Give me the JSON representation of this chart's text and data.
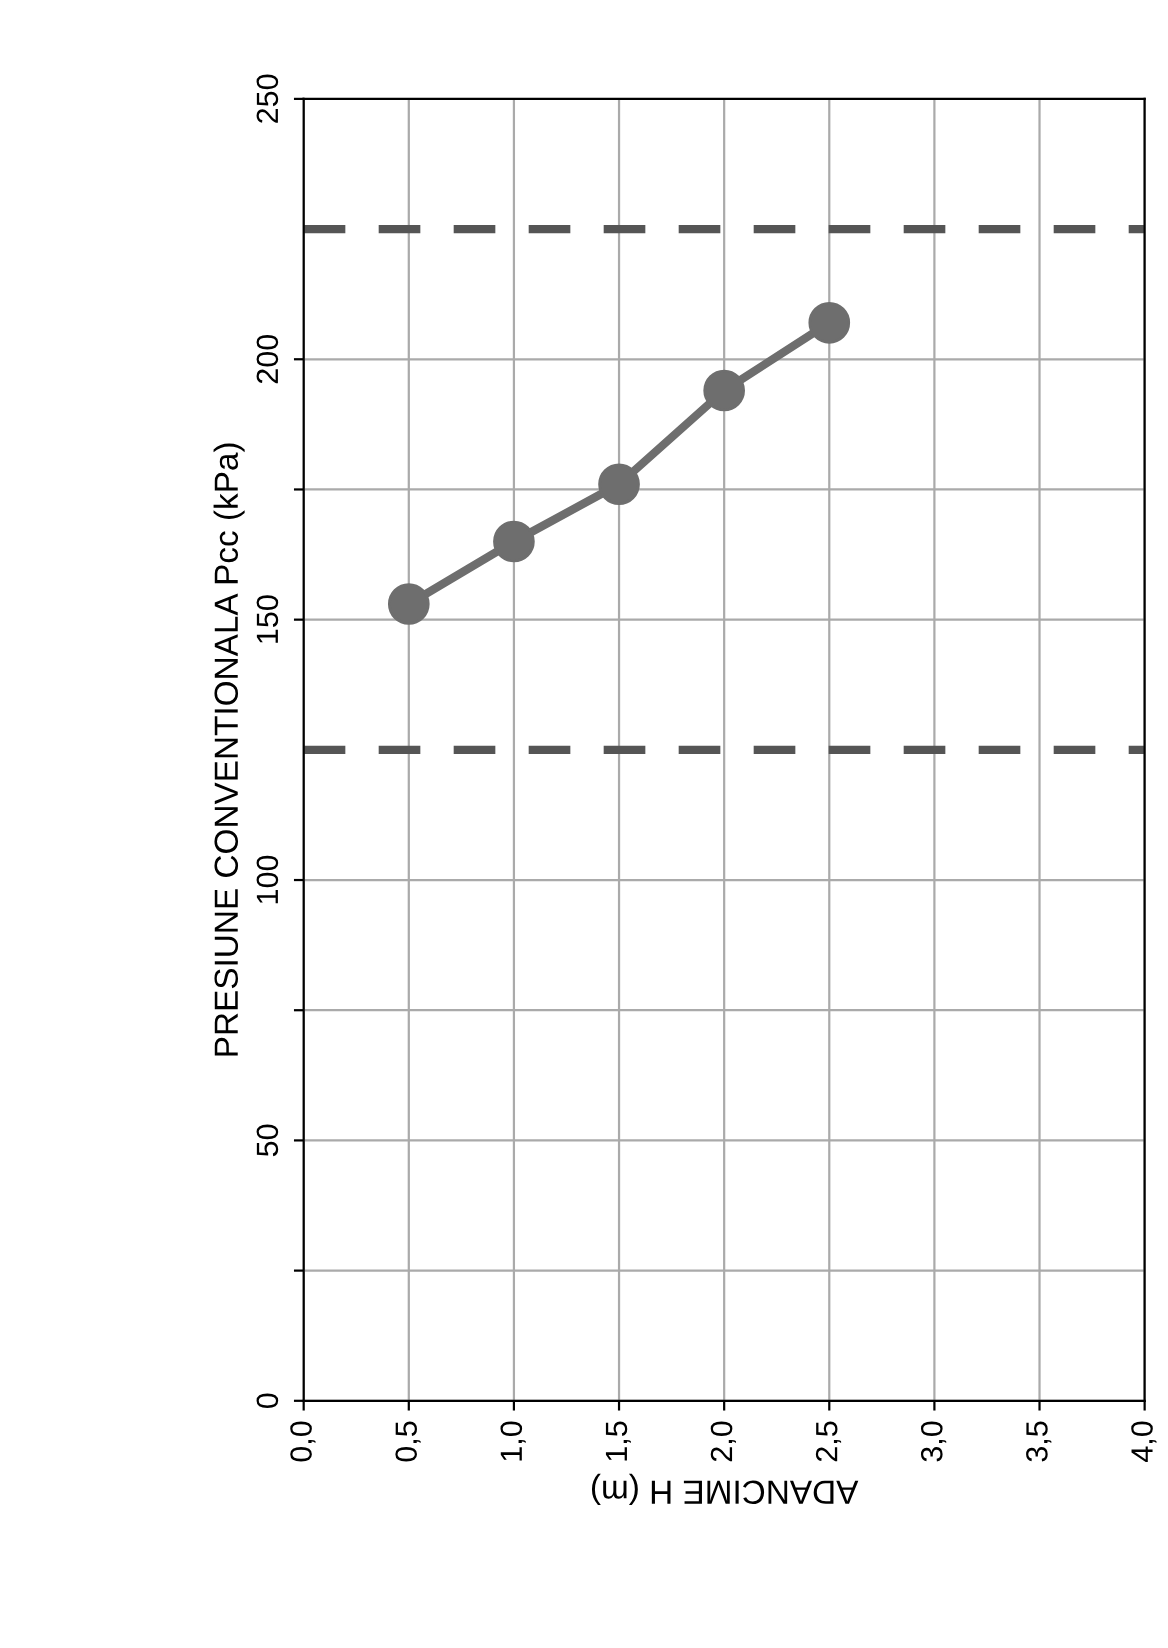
{
  "chart_data": {
    "type": "line",
    "xlabel": "ADANCIME H (m)",
    "ylabel": "PRESIUNE CONVENTIONALA Pcc (kPa)",
    "x": [
      0.5,
      1.0,
      1.5,
      2.0,
      2.5
    ],
    "series": [
      {
        "color": "#6e6e6e",
        "values": [
          153,
          165,
          176,
          194,
          207
        ]
      }
    ],
    "marker": "circle",
    "line_style": "solid",
    "xlim": [
      0,
      4
    ],
    "xticks": [
      {
        "value": 0,
        "label": "0,0"
      },
      {
        "value": 0.5,
        "label": "0,5"
      },
      {
        "value": 1,
        "label": "1,0"
      },
      {
        "value": 1.5,
        "label": "1,5"
      },
      {
        "value": 2,
        "label": "2,0"
      },
      {
        "value": 2.5,
        "label": "2,5"
      },
      {
        "value": 3,
        "label": "3,0"
      },
      {
        "value": 3.5,
        "label": "3,5"
      },
      {
        "value": 4,
        "label": "4,0"
      }
    ],
    "ylim": [
      0,
      250
    ],
    "yticks": [
      0,
      {
        "value": 25,
        "label": null
      },
      50,
      {
        "value": 75,
        "label": null
      },
      100,
      150,
      {
        "value": 175,
        "label": null
      },
      200,
      250
    ],
    "grid": true,
    "ref_lines": [
      {
        "axis": "y",
        "value": 225,
        "color": "#555555",
        "line_style": "dashed"
      },
      {
        "axis": "y",
        "value": 125,
        "color": "#555555",
        "line_style": "dashed"
      }
    ]
  }
}
